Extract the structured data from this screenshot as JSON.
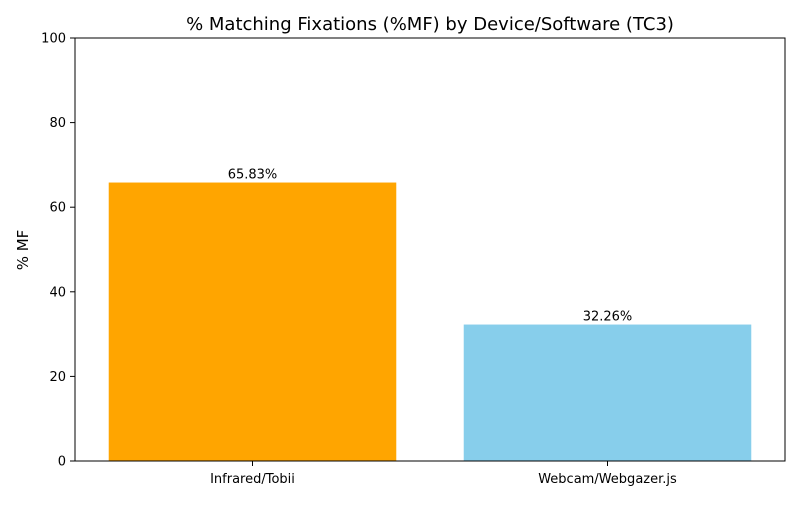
{
  "chart_data": {
    "type": "bar",
    "title": "% Matching Fixations (%MF) by Device/Software (TC3)",
    "xlabel": "",
    "ylabel": "% MF",
    "categories": [
      "Infrared/Tobii",
      "Webcam/Webgazer.js"
    ],
    "values": [
      65.83,
      32.26
    ],
    "data_labels": [
      "65.83%",
      "32.26%"
    ],
    "colors": [
      "#FFA500",
      "#87CEEB"
    ],
    "ylim": [
      0,
      100
    ],
    "yticks": [
      0,
      20,
      40,
      60,
      80,
      100
    ],
    "grid": false,
    "legend": "none"
  }
}
